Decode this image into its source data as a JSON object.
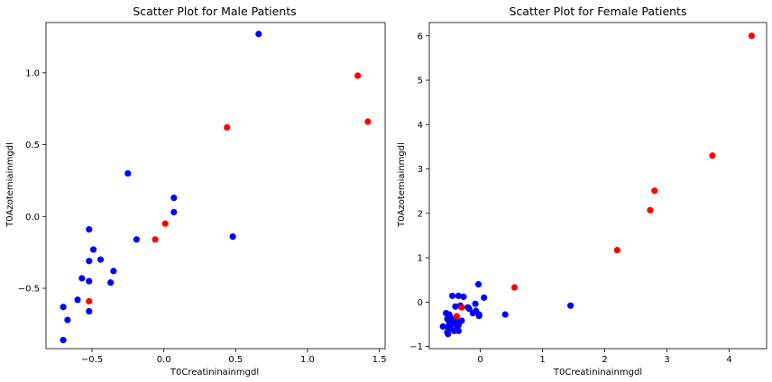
{
  "chart_data": [
    {
      "type": "scatter",
      "title": "Scatter Plot for Male Patients",
      "xlabel": "T0Creatininainmgdl",
      "ylabel": "T0Azotemiainmgdl",
      "xlim": [
        -0.82,
        1.54
      ],
      "ylim": [
        -0.92,
        1.35
      ],
      "xticks": [
        -0.5,
        0.0,
        0.5,
        1.0,
        1.5
      ],
      "xtick_labels": [
        "−0.5",
        "0.0",
        "0.5",
        "1.0",
        "1.5"
      ],
      "yticks": [
        -0.5,
        0.0,
        0.5,
        1.0
      ],
      "ytick_labels": [
        "−0.5",
        "0.0",
        "0.5",
        "1.0"
      ],
      "grid": false,
      "legend": false,
      "series": [
        {
          "color": "#0000ff",
          "points": [
            [
              0.66,
              1.27
            ],
            [
              -0.25,
              0.3
            ],
            [
              0.07,
              0.13
            ],
            [
              0.07,
              0.03
            ],
            [
              -0.52,
              -0.09
            ],
            [
              -0.19,
              -0.16
            ],
            [
              0.48,
              -0.14
            ],
            [
              -0.49,
              -0.23
            ],
            [
              -0.44,
              -0.3
            ],
            [
              -0.52,
              -0.31
            ],
            [
              -0.35,
              -0.38
            ],
            [
              -0.57,
              -0.43
            ],
            [
              -0.52,
              -0.45
            ],
            [
              -0.37,
              -0.46
            ],
            [
              -0.6,
              -0.58
            ],
            [
              -0.52,
              -0.66
            ],
            [
              -0.7,
              -0.63
            ],
            [
              -0.67,
              -0.72
            ],
            [
              -0.7,
              -0.86
            ]
          ]
        },
        {
          "color": "#ff0000",
          "points": [
            [
              1.35,
              0.98
            ],
            [
              1.42,
              0.66
            ],
            [
              0.44,
              0.62
            ],
            [
              0.01,
              -0.05
            ],
            [
              -0.06,
              -0.16
            ],
            [
              -0.52,
              -0.59
            ]
          ]
        }
      ]
    },
    {
      "type": "scatter",
      "title": "Scatter Plot for Female Patients",
      "xlabel": "T0Creatininainmgdl",
      "ylabel": "T0Azotemiainmgdl",
      "xlim": [
        -0.82,
        4.6
      ],
      "ylim": [
        -1.05,
        6.3
      ],
      "xticks": [
        0,
        1,
        2,
        3,
        4
      ],
      "xtick_labels": [
        "0",
        "1",
        "2",
        "3",
        "4"
      ],
      "yticks": [
        -1,
        0,
        1,
        2,
        3,
        4,
        5,
        6
      ],
      "ytick_labels": [
        "−1",
        "0",
        "1",
        "2",
        "3",
        "4",
        "5",
        "6"
      ],
      "grid": false,
      "legend": false,
      "series": [
        {
          "color": "#0000ff",
          "points": [
            [
              -0.03,
              0.4
            ],
            [
              0.06,
              0.1
            ],
            [
              -0.45,
              0.14
            ],
            [
              -0.35,
              0.14
            ],
            [
              -0.27,
              0.12
            ],
            [
              -0.08,
              -0.04
            ],
            [
              -0.4,
              -0.1
            ],
            [
              -0.32,
              -0.08
            ],
            [
              -0.2,
              -0.12
            ],
            [
              -0.18,
              -0.15
            ],
            [
              -0.07,
              -0.2
            ],
            [
              -0.12,
              -0.25
            ],
            [
              -0.02,
              -0.28
            ],
            [
              -0.02,
              -0.31
            ],
            [
              0.4,
              -0.28
            ],
            [
              1.45,
              -0.08
            ],
            [
              -0.55,
              -0.25
            ],
            [
              -0.5,
              -0.28
            ],
            [
              -0.48,
              -0.35
            ],
            [
              -0.53,
              -0.38
            ],
            [
              -0.42,
              -0.4
            ],
            [
              -0.38,
              -0.42
            ],
            [
              -0.3,
              -0.42
            ],
            [
              -0.5,
              -0.45
            ],
            [
              -0.45,
              -0.48
            ],
            [
              -0.4,
              -0.5
            ],
            [
              -0.35,
              -0.52
            ],
            [
              -0.6,
              -0.55
            ],
            [
              -0.52,
              -0.56
            ],
            [
              -0.48,
              -0.6
            ],
            [
              -0.38,
              -0.62
            ],
            [
              -0.35,
              -0.65
            ],
            [
              -0.53,
              -0.68
            ],
            [
              -0.52,
              -0.72
            ],
            [
              -0.42,
              -0.65
            ]
          ]
        },
        {
          "color": "#ff0000",
          "points": [
            [
              4.36,
              6.0
            ],
            [
              3.73,
              3.3
            ],
            [
              2.8,
              2.51
            ],
            [
              2.73,
              2.07
            ],
            [
              2.2,
              1.17
            ],
            [
              0.55,
              0.33
            ],
            [
              -0.3,
              -0.12
            ],
            [
              -0.38,
              -0.32
            ]
          ]
        }
      ]
    }
  ]
}
